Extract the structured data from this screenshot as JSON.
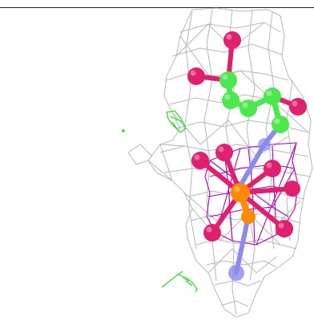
{
  "scene": {
    "type": "molecular-structure-render",
    "background": "#ffffff",
    "colors": {
      "mesh": "#a8a8a8",
      "carbon": "#4de84d",
      "oxygen": "#e0206e",
      "phosphorus": "#ff8a00",
      "nitrogen": "#8a8af0",
      "magenta_mesh": "#b000c0",
      "green_mesh": "#22dd22"
    },
    "icons": [
      "electron-density-mesh",
      "ball-and-stick-ligand",
      "difference-density-mesh"
    ]
  }
}
